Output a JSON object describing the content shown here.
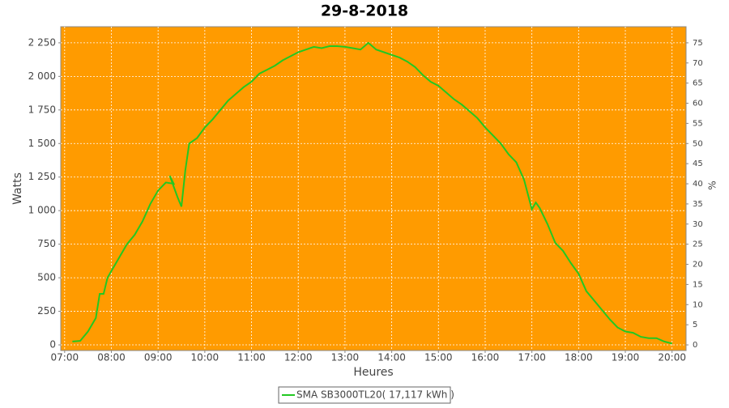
{
  "chart_data": {
    "type": "line",
    "title": "29-8-2018",
    "x_label": "Heures",
    "y_label": "Watts",
    "y2_label": "%",
    "x": [
      430,
      440,
      450,
      460,
      465,
      470,
      475,
      480,
      490,
      500,
      510,
      520,
      530,
      540,
      550,
      560,
      555,
      565,
      570,
      575,
      580,
      590,
      600,
      610,
      620,
      630,
      640,
      650,
      660,
      670,
      680,
      690,
      700,
      710,
      720,
      730,
      740,
      750,
      760,
      770,
      780,
      790,
      800,
      810,
      820,
      830,
      840,
      850,
      860,
      870,
      880,
      890,
      900,
      910,
      920,
      930,
      940,
      950,
      960,
      970,
      980,
      990,
      1000,
      1010,
      1020,
      1025,
      1030,
      1040,
      1050,
      1060,
      1070,
      1080,
      1090,
      1100,
      1110,
      1120,
      1130,
      1140,
      1150,
      1160,
      1170,
      1180,
      1190,
      1200
    ],
    "series": [
      {
        "name": "SMA SB3000TL20( 17,117 kWh )",
        "color": "#22c822",
        "values": [
          25,
          30,
          100,
          200,
          380,
          380,
          500,
          550,
          650,
          750,
          820,
          920,
          1050,
          1150,
          1210,
          1200,
          1260,
          1100,
          1030,
          1300,
          1500,
          1540,
          1620,
          1680,
          1750,
          1820,
          1870,
          1920,
          1960,
          2020,
          2050,
          2080,
          2120,
          2150,
          2180,
          2200,
          2220,
          2210,
          2225,
          2225,
          2220,
          2210,
          2200,
          2250,
          2200,
          2180,
          2160,
          2140,
          2110,
          2070,
          2010,
          1960,
          1930,
          1880,
          1830,
          1790,
          1740,
          1690,
          1620,
          1560,
          1500,
          1420,
          1360,
          1230,
          1010,
          1060,
          1020,
          900,
          760,
          700,
          610,
          530,
          400,
          330,
          260,
          190,
          130,
          100,
          90,
          60,
          50,
          50,
          25,
          10
        ]
      }
    ],
    "xlim": [
      415,
      1218
    ],
    "xticks": [
      {
        "value": 420,
        "label": "07:00"
      },
      {
        "value": 480,
        "label": "08:00"
      },
      {
        "value": 540,
        "label": "09:00"
      },
      {
        "value": 600,
        "label": "10:00"
      },
      {
        "value": 660,
        "label": "11:00"
      },
      {
        "value": 720,
        "label": "12:00"
      },
      {
        "value": 780,
        "label": "13:00"
      },
      {
        "value": 840,
        "label": "14:00"
      },
      {
        "value": 900,
        "label": "15:00"
      },
      {
        "value": 960,
        "label": "16:00"
      },
      {
        "value": 1020,
        "label": "17:00"
      },
      {
        "value": 1080,
        "label": "18:00"
      },
      {
        "value": 1140,
        "label": "19:00"
      },
      {
        "value": 1200,
        "label": "20:00"
      }
    ],
    "ylim": [
      -42,
      2370
    ],
    "yticks": [
      0,
      250,
      500,
      750,
      {
        "value": 1000,
        "label": "1 000"
      },
      {
        "value": 1250,
        "label": "1 250"
      },
      {
        "value": 1500,
        "label": "1 500"
      },
      {
        "value": 1750,
        "label": "1 750"
      },
      {
        "value": 2000,
        "label": "2 000"
      },
      {
        "value": 2250,
        "label": "2 250"
      }
    ],
    "y2lim": [
      -1.4,
      79
    ],
    "y2ticks": [
      0,
      5,
      10,
      15,
      20,
      25,
      30,
      35,
      40,
      45,
      50,
      55,
      60,
      65,
      70,
      75
    ],
    "grid": true,
    "plot_background": "#ff9b00",
    "legend": "bottom"
  }
}
